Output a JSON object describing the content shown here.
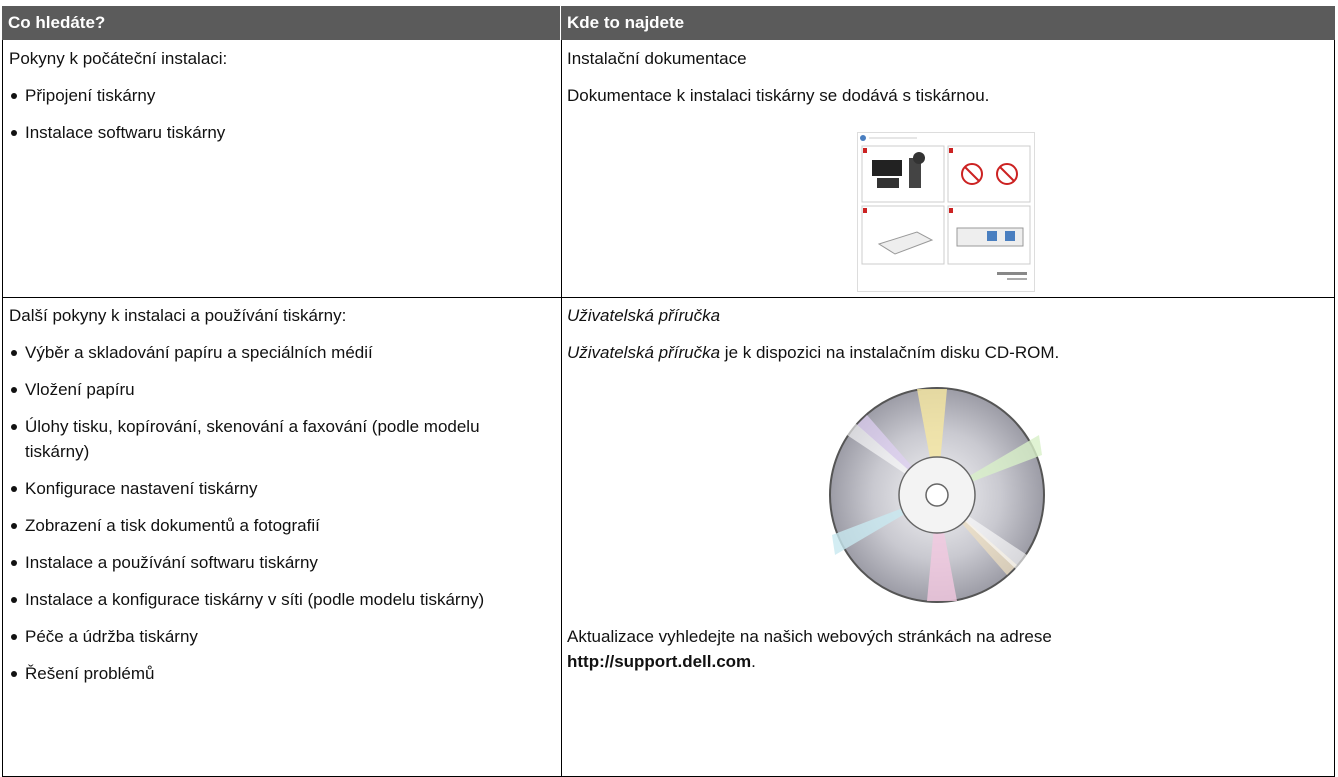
{
  "table": {
    "header": [
      "Co hledáte?",
      "Kde to najdete"
    ],
    "rows": [
      {
        "left": {
          "intro": "Pokyny k počáteční instalaci:",
          "items": [
            "Připojení tiskárny",
            "Instalace softwaru tiskárny"
          ]
        },
        "right": {
          "title": "Instalační dokumentace",
          "text": "Dokumentace k instalaci tiskárny se dodává s tiskárnou."
        }
      },
      {
        "left": {
          "intro": "Další pokyny k instalaci a používání tiskárny:",
          "items": [
            "Výběr a skladování papíru a speciálních médií",
            "Vložení papíru",
            "Úlohy tisku, kopírování, skenování a faxování (podle modelu tiskárny)",
            "Konfigurace nastavení tiskárny",
            "Zobrazení a tisk dokumentů a fotografií",
            "Instalace a používání softwaru tiskárny",
            "Instalace a konfigurace tiskárny v síti (podle modelu tiskárny)",
            "Péče a údržba tiskárny",
            "Řešení problémů"
          ]
        },
        "right": {
          "title": "Uživatelská příručka",
          "text_italic": "Uživatelská příručka",
          "text": " je k dispozici na instalačním disku CD-ROM.",
          "update_text": "Aktualizace vyhledejte na našich webových stránkách na adrese ",
          "update_link": "http://support.dell.com",
          "update_end": "."
        }
      }
    ]
  }
}
